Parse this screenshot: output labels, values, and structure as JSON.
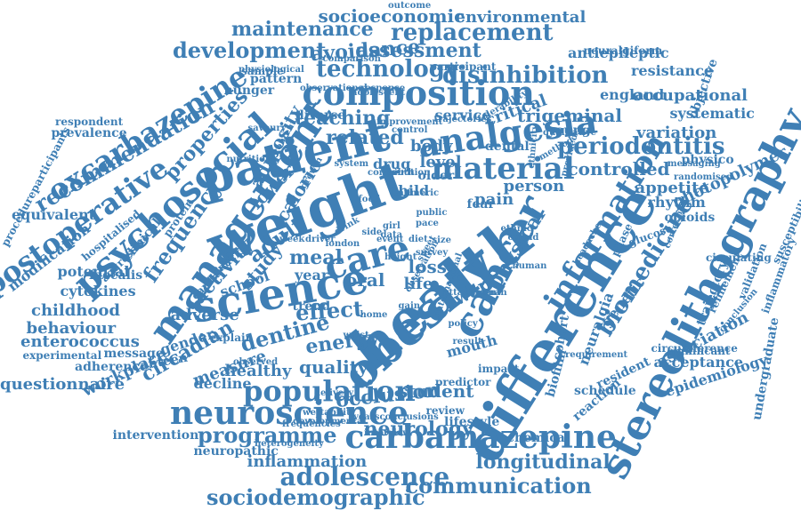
{
  "color": "#3f7fb5",
  "words": [
    "health",
    "weight",
    "patient",
    "difference",
    "obesity",
    "cancer",
    "science",
    "management",
    "psychosocial",
    "stereolithography",
    "neuroscience",
    "carbamazepine",
    "composition",
    "analgesia",
    "material",
    "population",
    "information",
    "oxcarbazepine",
    "postoperative",
    "care",
    "adolescence",
    "sociodemographic",
    "communication",
    "periodontitis",
    "biomedicine",
    "programme",
    "occlusion",
    "neurology",
    "energy",
    "disinhibition",
    "development",
    "maintenance",
    "replacement",
    "technology",
    "recommendation",
    "adult",
    "activity",
    "dentine",
    "circadian",
    "effect",
    "meal",
    "physical",
    "assessment",
    "avoidance",
    "socioeconomic",
    "environmental",
    "trigeminal",
    "controlled",
    "person",
    "related",
    "teaching",
    "lower",
    "adiposity",
    "study",
    "caloric",
    "frequency",
    "properties",
    "childhood",
    "behaviour",
    "enterococcus",
    "cytokines",
    "potential",
    "equivalent",
    "modification",
    "questionnaire",
    "workplace",
    "adherence",
    "experimental",
    "message",
    "canteen",
    "measure",
    "healthy",
    "quality",
    "student",
    "review",
    "intervention",
    "chemical",
    "longitudinal",
    "inflammation",
    "neuropathic",
    "association",
    "acceptance",
    "epidemiology",
    "undergraduate",
    "significant",
    "trajectory",
    "refinement",
    "validation",
    "inflammatory",
    "susceptibility",
    "photopolymer",
    "variation",
    "occupational",
    "systematic",
    "objective",
    "resistance",
    "neuralgiform",
    "antiepileptic",
    "england",
    "critical",
    "young",
    "service",
    "dental",
    "appetite",
    "rhythm",
    "opioids",
    "genetic",
    "neuralgia",
    "biofilm",
    "cohort",
    "mouth",
    "swap",
    "loss",
    "life",
    "oral",
    "year",
    "level",
    "pain",
    "child",
    "body",
    "school",
    "adverse",
    "gender",
    "trend",
    "decline",
    "resident",
    "schedule",
    "reaction",
    "lifestyle",
    "predictor",
    "impact",
    "hunger",
    "pattern",
    "sample",
    "diverse",
    "drug",
    "older",
    "fear",
    "physico",
    "glucose",
    "phase",
    "circulating",
    "conclusion",
    "circumference",
    "prevalence",
    "respondent",
    "procedureparticipants",
    "protein",
    "clinical",
    "faecalis",
    "aggressive",
    "hospitalised",
    "cardia",
    "snack",
    "explain",
    "observed",
    "delivery",
    "wettability",
    "frequencies",
    "developmental",
    "yearsconclusions",
    "ethnic",
    "opioid",
    "human",
    "woman",
    "side",
    "girl",
    "pace",
    "size",
    "survey",
    "international",
    "requirement",
    "messaging",
    "randomised",
    "correction",
    "headache",
    "qualitative",
    "method",
    "ethnicity",
    "provided",
    "trajectories",
    "tolerability",
    "comparison",
    "response",
    "participant",
    "observational",
    "physiological",
    "outcome",
    "control",
    "content",
    "growth",
    "system",
    "youth",
    "public",
    "numeric",
    "food",
    "home",
    "waist",
    "london",
    "gain",
    "policy",
    "result",
    "diet",
    "drink",
    "event",
    "week",
    "driver",
    "data",
    "nutrition",
    "savoury",
    "heterogeneity",
    "interview",
    "attachment",
    "observation",
    "contribution",
    "sweet",
    "improvement",
    "adolescent",
    "height"
  ]
}
